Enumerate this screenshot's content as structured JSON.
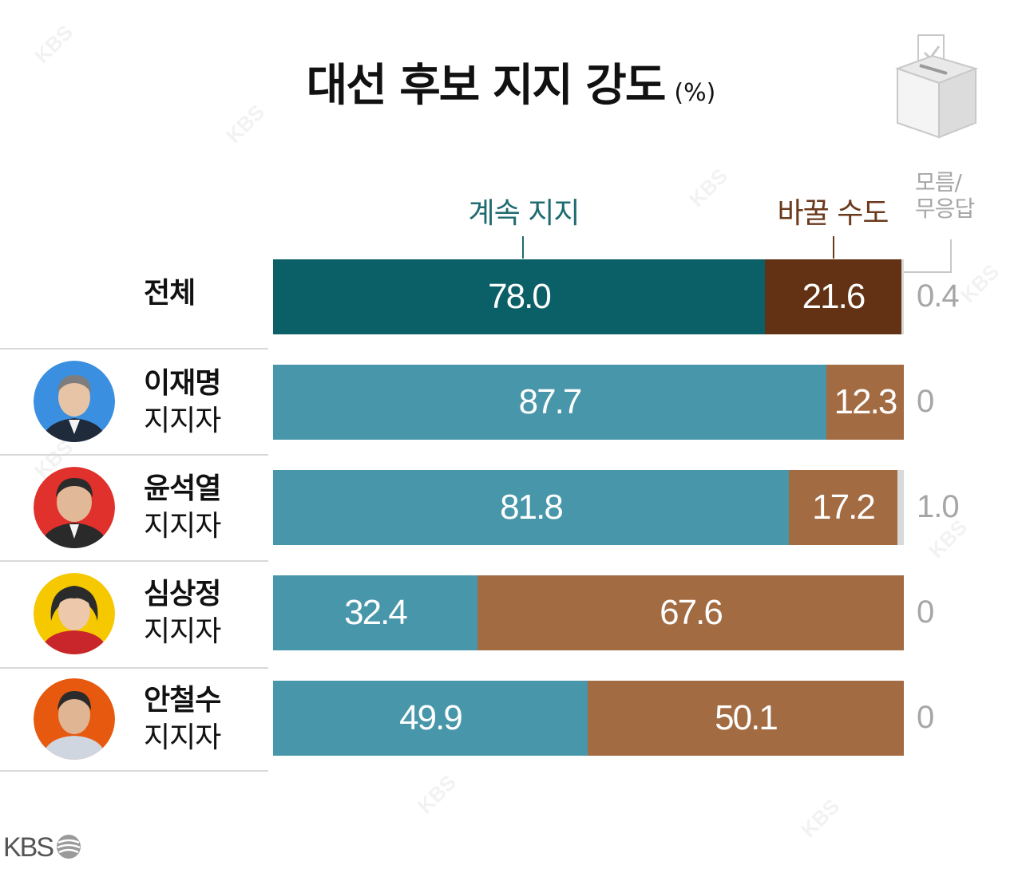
{
  "title": "대선 후보 지지 강도",
  "unit": "(%)",
  "colors": {
    "total_keep": "#0b5f66",
    "total_change": "#633113",
    "keep": "#4896aa",
    "change": "#a36b42",
    "no_answer": "#d9d9d9",
    "no_answer_text": "#a6a6a6",
    "keep_header": "#1f6b70",
    "change_header": "#6b3a1d"
  },
  "chart_data": {
    "type": "bar",
    "stacked": true,
    "orientation": "horizontal",
    "categories": [
      "전체",
      "이재명 지지자",
      "윤석열 지지자",
      "심상정 지지자",
      "안철수 지지자"
    ],
    "series": [
      {
        "name": "계속 지지",
        "values": [
          78.0,
          87.7,
          81.8,
          32.4,
          49.9
        ]
      },
      {
        "name": "바꿀 수도",
        "values": [
          21.6,
          12.3,
          17.2,
          67.6,
          50.1
        ]
      },
      {
        "name": "모름/무응답",
        "values": [
          0.4,
          0,
          1.0,
          0,
          0
        ]
      }
    ],
    "value_labels": {
      "keep": [
        "78.0",
        "87.7",
        "81.8",
        "32.4",
        "49.9"
      ],
      "change": [
        "21.6",
        "12.3",
        "17.2",
        "67.6",
        "50.1"
      ],
      "no_answer": [
        "0.4",
        "0",
        "1.0",
        "0",
        "0"
      ]
    },
    "xlim": [
      0,
      100
    ]
  },
  "headers": {
    "keep": "계속 지지",
    "change": "바꿀 수도",
    "no_answer_line1": "모름/",
    "no_answer_line2": "무응답"
  },
  "rows": [
    {
      "name": "전체",
      "sub": ""
    },
    {
      "name": "이재명",
      "sub": "지지자",
      "avatar_bg": "#3b8fe0"
    },
    {
      "name": "윤석열",
      "sub": "지지자",
      "avatar_bg": "#e0312c"
    },
    {
      "name": "심상정",
      "sub": "지지자",
      "avatar_bg": "#f5c800"
    },
    {
      "name": "안철수",
      "sub": "지지자",
      "avatar_bg": "#e6590f"
    }
  ],
  "logo": "KBS",
  "watermark": "KBS",
  "icons": [
    "ballot-box-icon",
    "kbs-logo-icon"
  ]
}
